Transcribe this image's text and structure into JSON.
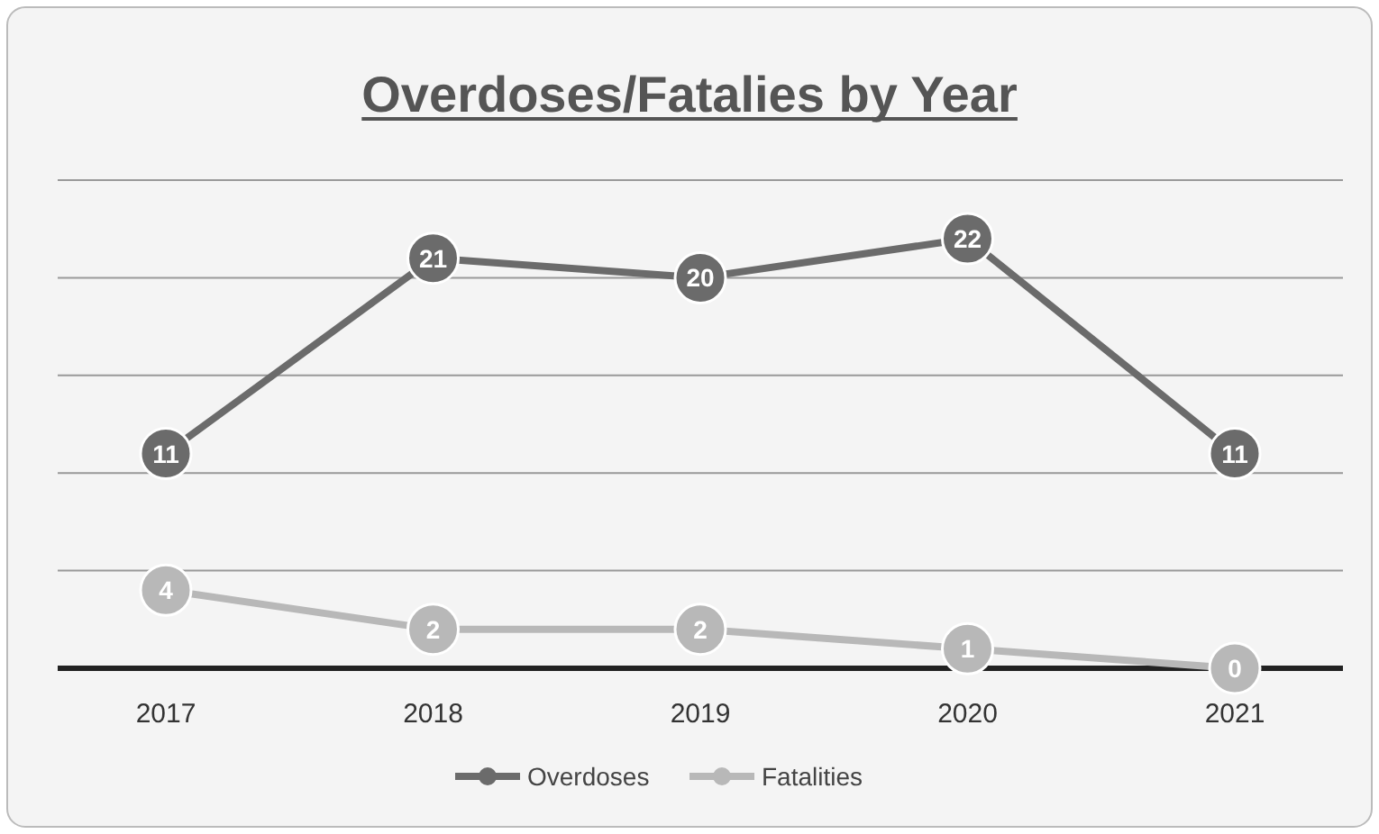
{
  "chart_data": {
    "type": "line",
    "title": "Overdoses/Fatalies by Year",
    "categories": [
      "2017",
      "2018",
      "2019",
      "2020",
      "2021"
    ],
    "series": [
      {
        "name": "Overdoses",
        "color": "#6b6b6b",
        "values": [
          11,
          21,
          20,
          22,
          11
        ]
      },
      {
        "name": "Fatalities",
        "color": "#b8b8b8",
        "values": [
          4,
          2,
          2,
          1,
          0
        ]
      }
    ],
    "ylim": [
      0,
      25
    ],
    "yticks": [
      {
        "value": 0,
        "label": null
      },
      {
        "value": 5,
        "label": null
      },
      {
        "value": 10,
        "label": null
      },
      {
        "value": 15,
        "label": null
      },
      {
        "value": 20,
        "label": null
      },
      {
        "value": 25,
        "label": null
      }
    ],
    "tick_labels": "x",
    "grid": "y",
    "data_labels": true,
    "legend": "bottom",
    "marker": "circle",
    "line_style": "solid"
  }
}
